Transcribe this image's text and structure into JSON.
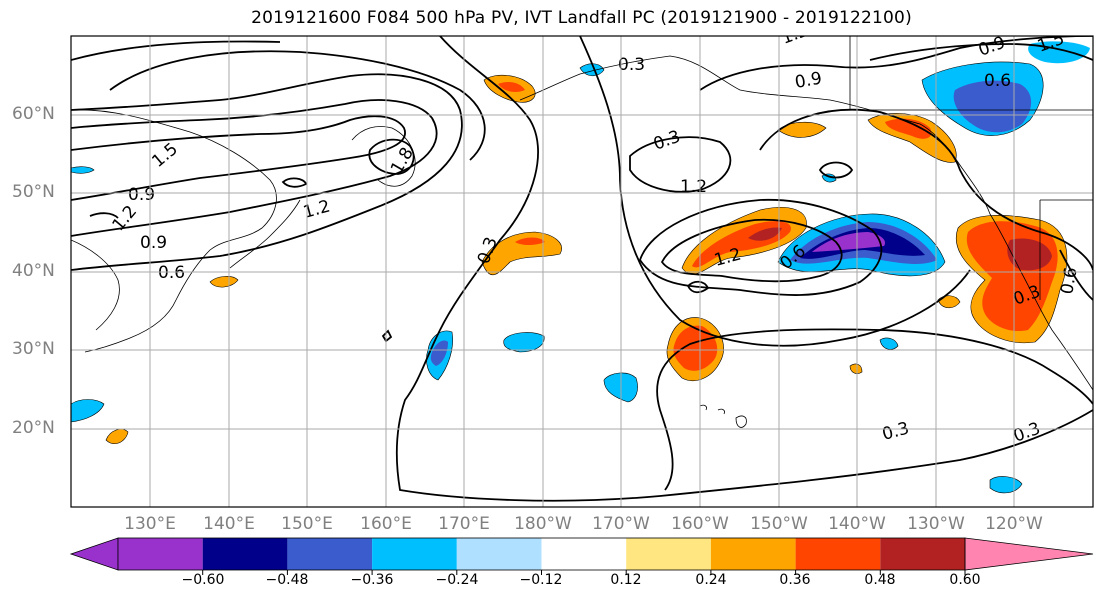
{
  "title": "2019121600 F084 500 hPa PV, IVT Landfall PC (2019121900 - 2019122100)",
  "map": {
    "lat_labels": [
      "60°N",
      "50°N",
      "40°N",
      "30°N",
      "20°N"
    ],
    "lon_labels": [
      "130°E",
      "140°E",
      "150°E",
      "160°E",
      "170°E",
      "180°W",
      "170°W",
      "160°W",
      "150°W",
      "140°W",
      "130°W",
      "120°W"
    ],
    "contour_labels": [
      "1.2",
      "0.3",
      "1.5",
      "0.9",
      "1.8",
      "1.2",
      "0.9",
      "0.6",
      "0.3",
      "0.3",
      "1.2",
      "0.9",
      "1.2",
      "1.2",
      "0.9",
      "0.6",
      "1.5",
      "0.3",
      "0.6",
      "0.3",
      "0.3",
      "0.6"
    ],
    "shading_colors": {
      "purple": "#9932cc",
      "navy": "#00008b",
      "royal_blue": "#3a5ccc",
      "deep_sky": "#00bfff",
      "light_sky": "#b0e0ff",
      "yellow": "#ffe680",
      "orange": "#ffa500",
      "red_orange": "#ff4500",
      "firebrick": "#b22222",
      "pink": "#ff85b0"
    }
  },
  "colorbar": {
    "tick_labels": [
      "−0.60",
      "−0.48",
      "−0.36",
      "−0.24",
      "−0.12",
      "0.12",
      "0.24",
      "0.36",
      "0.48",
      "0.60"
    ],
    "colors": [
      "#9932cc",
      "#00008b",
      "#3a5ccc",
      "#00bfff",
      "#b0e0ff",
      "#ffffff",
      "#ffe680",
      "#ffa500",
      "#ff4500",
      "#b22222",
      "#ff85b0"
    ]
  }
}
